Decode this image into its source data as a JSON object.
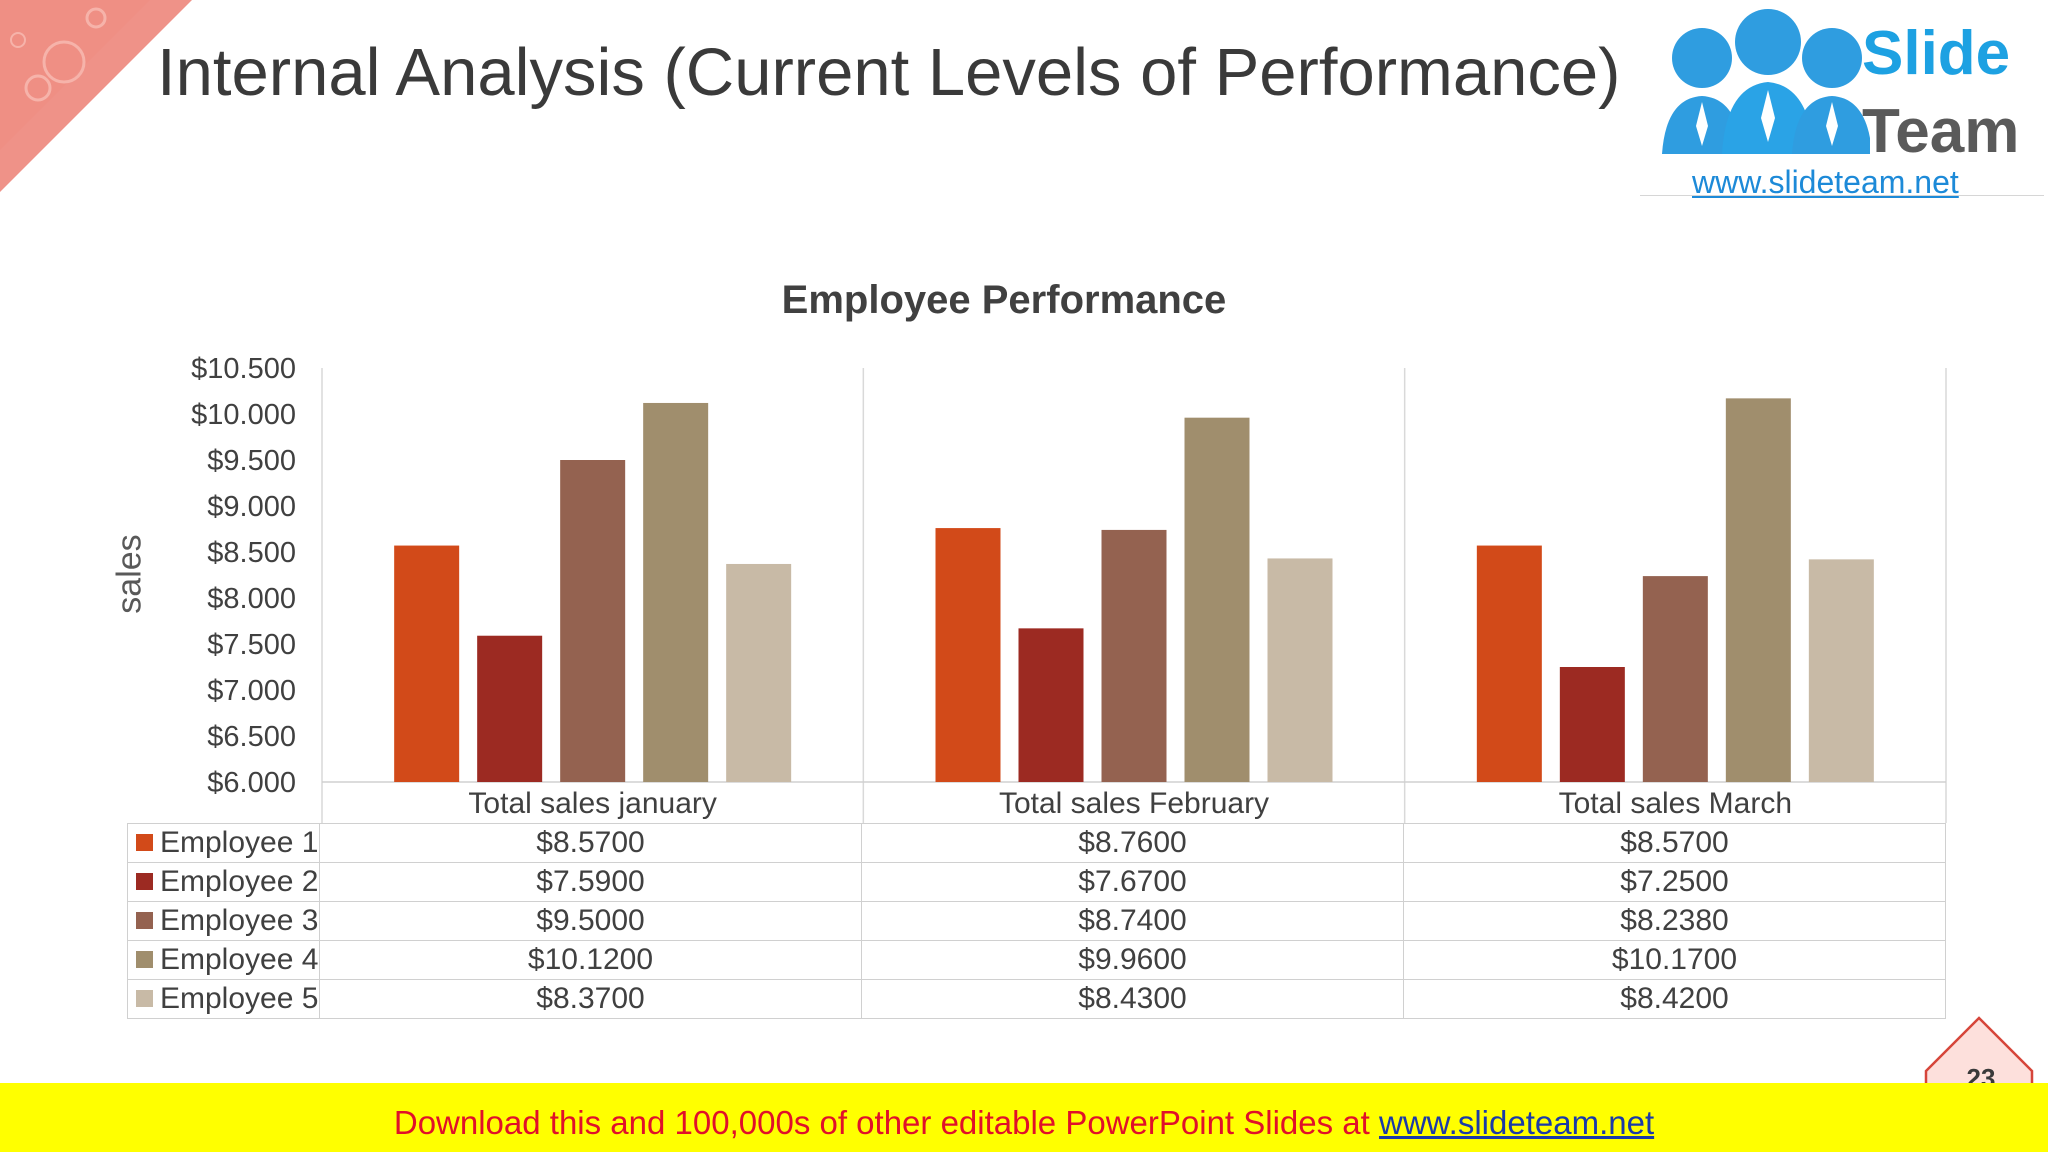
{
  "slide": {
    "title": "Internal Analysis (Current Levels of Performance)",
    "page_number": "23"
  },
  "logo": {
    "word1": "Slide",
    "word2": "Team",
    "url": "www.slideteam.net"
  },
  "footer": {
    "text": "Download this and 100,000s of other editable PowerPoint Slides at ",
    "link": "www.slideteam.net"
  },
  "colors": {
    "accent_corner": "#ec7f73",
    "footer_bg": "#ffff00",
    "footer_text": "#e0102a",
    "footer_link": "#1a3aa8",
    "logo_blue": "#1da1e2"
  },
  "chart_data": {
    "type": "bar",
    "title": "Employee Performance",
    "ylabel": "sales",
    "xlabel": "",
    "ylim": [
      6.0,
      10.5
    ],
    "ytick_labels": [
      "$6.000",
      "$6.500",
      "$7.000",
      "$7.500",
      "$8.000",
      "$8.500",
      "$9.000",
      "$9.500",
      "$10.000",
      "$10.500"
    ],
    "categories": [
      "Total sales january",
      "Total sales February",
      "Total sales March"
    ],
    "series": [
      {
        "name": "Employee 1",
        "color": "#d24a19",
        "values": [
          8.57,
          8.76,
          8.57
        ],
        "labels": [
          "$8.5700",
          "$8.7600",
          "$8.5700"
        ]
      },
      {
        "name": "Employee 2",
        "color": "#9c2a22",
        "values": [
          7.59,
          7.67,
          7.25
        ],
        "labels": [
          "$7.5900",
          "$7.6700",
          "$7.2500"
        ]
      },
      {
        "name": "Employee 3",
        "color": "#946250",
        "values": [
          9.5,
          8.74,
          8.238
        ],
        "labels": [
          "$9.5000",
          "$8.7400",
          "$8.2380"
        ]
      },
      {
        "name": "Employee 4",
        "color": "#a08e6d",
        "values": [
          10.12,
          9.96,
          10.17
        ],
        "labels": [
          "$10.1200",
          "$9.9600",
          "$10.1700"
        ]
      },
      {
        "name": "Employee 5",
        "color": "#c8baa6",
        "values": [
          8.37,
          8.43,
          8.42
        ],
        "labels": [
          "$8.3700",
          "$8.4300",
          "$8.4200"
        ]
      }
    ],
    "legend": "data-table"
  }
}
